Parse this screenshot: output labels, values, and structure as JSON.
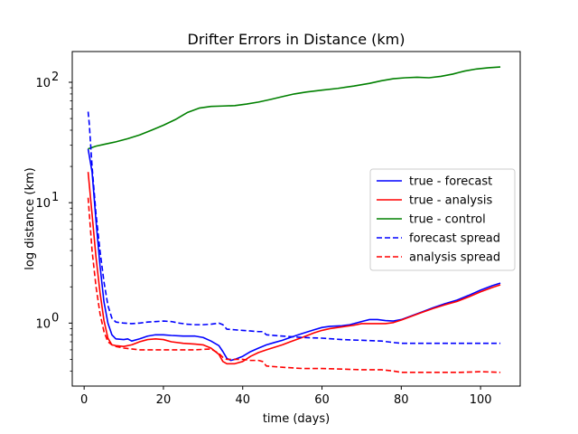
{
  "chart_data": {
    "type": "line",
    "title": "Drifter Errors in Distance (km)",
    "xlabel": "time (days)",
    "ylabel": "log distance (km)",
    "xlim": [
      -3,
      110
    ],
    "ylim": [
      0.3,
      180
    ],
    "yscale": "log",
    "x_ticks": [
      0,
      20,
      40,
      60,
      80,
      100
    ],
    "y_ticks": [
      {
        "value": 1,
        "label": "10",
        "exp": "0"
      },
      {
        "value": 10,
        "label": "10",
        "exp": "1"
      },
      {
        "value": 100,
        "label": "10",
        "exp": "2"
      }
    ],
    "minor_y_ticks": [
      0.4,
      0.5,
      0.6,
      0.7,
      0.8,
      0.9,
      2,
      3,
      4,
      5,
      6,
      7,
      8,
      9,
      20,
      30,
      40,
      50,
      60,
      70,
      80,
      90
    ],
    "grid": false,
    "legend_position": "center-right",
    "series": [
      {
        "name": "true - forecast",
        "color": "#0000ff",
        "dash": "solid",
        "points": [
          [
            1,
            28
          ],
          [
            2,
            18
          ],
          [
            3,
            7
          ],
          [
            4,
            3
          ],
          [
            5,
            1.5
          ],
          [
            6,
            1.0
          ],
          [
            7,
            0.8
          ],
          [
            8,
            0.74
          ],
          [
            10,
            0.73
          ],
          [
            11,
            0.74
          ],
          [
            12,
            0.71
          ],
          [
            14,
            0.74
          ],
          [
            16,
            0.78
          ],
          [
            18,
            0.8
          ],
          [
            20,
            0.8
          ],
          [
            22,
            0.79
          ],
          [
            25,
            0.78
          ],
          [
            28,
            0.78
          ],
          [
            30,
            0.76
          ],
          [
            32,
            0.71
          ],
          [
            34,
            0.65
          ],
          [
            35,
            0.58
          ],
          [
            36,
            0.51
          ],
          [
            37,
            0.49
          ],
          [
            38,
            0.5
          ],
          [
            40,
            0.53
          ],
          [
            42,
            0.58
          ],
          [
            44,
            0.62
          ],
          [
            46,
            0.66
          ],
          [
            48,
            0.69
          ],
          [
            50,
            0.72
          ],
          [
            52,
            0.76
          ],
          [
            55,
            0.82
          ],
          [
            58,
            0.88
          ],
          [
            60,
            0.92
          ],
          [
            62,
            0.94
          ],
          [
            65,
            0.95
          ],
          [
            67,
            0.97
          ],
          [
            70,
            1.03
          ],
          [
            72,
            1.07
          ],
          [
            74,
            1.07
          ],
          [
            76,
            1.05
          ],
          [
            78,
            1.04
          ],
          [
            80,
            1.07
          ],
          [
            82,
            1.13
          ],
          [
            85,
            1.23
          ],
          [
            88,
            1.34
          ],
          [
            91,
            1.45
          ],
          [
            94,
            1.55
          ],
          [
            97,
            1.7
          ],
          [
            100,
            1.88
          ],
          [
            103,
            2.05
          ],
          [
            105,
            2.15
          ]
        ]
      },
      {
        "name": "true - analysis",
        "color": "#ff0000",
        "dash": "solid",
        "points": [
          [
            1,
            18
          ],
          [
            2,
            8
          ],
          [
            3,
            3.5
          ],
          [
            4,
            1.8
          ],
          [
            5,
            1.05
          ],
          [
            6,
            0.75
          ],
          [
            7,
            0.66
          ],
          [
            8,
            0.65
          ],
          [
            10,
            0.64
          ],
          [
            12,
            0.66
          ],
          [
            14,
            0.7
          ],
          [
            16,
            0.73
          ],
          [
            18,
            0.74
          ],
          [
            20,
            0.73
          ],
          [
            22,
            0.7
          ],
          [
            25,
            0.68
          ],
          [
            28,
            0.67
          ],
          [
            30,
            0.66
          ],
          [
            32,
            0.62
          ],
          [
            34,
            0.55
          ],
          [
            35,
            0.48
          ],
          [
            36,
            0.46
          ],
          [
            38,
            0.46
          ],
          [
            40,
            0.48
          ],
          [
            42,
            0.53
          ],
          [
            44,
            0.57
          ],
          [
            46,
            0.6
          ],
          [
            48,
            0.63
          ],
          [
            50,
            0.66
          ],
          [
            52,
            0.7
          ],
          [
            55,
            0.76
          ],
          [
            58,
            0.83
          ],
          [
            60,
            0.87
          ],
          [
            62,
            0.9
          ],
          [
            65,
            0.93
          ],
          [
            68,
            0.96
          ],
          [
            70,
            0.99
          ],
          [
            73,
            0.99
          ],
          [
            76,
            0.99
          ],
          [
            78,
            1.01
          ],
          [
            80,
            1.06
          ],
          [
            82,
            1.12
          ],
          [
            85,
            1.22
          ],
          [
            88,
            1.32
          ],
          [
            91,
            1.42
          ],
          [
            94,
            1.51
          ],
          [
            97,
            1.65
          ],
          [
            100,
            1.82
          ],
          [
            103,
            1.98
          ],
          [
            105,
            2.08
          ]
        ]
      },
      {
        "name": "true - control",
        "color": "#008000",
        "dash": "solid",
        "points": [
          [
            1,
            28
          ],
          [
            3,
            29.5
          ],
          [
            5,
            30.5
          ],
          [
            8,
            32
          ],
          [
            11,
            34
          ],
          [
            14,
            36.5
          ],
          [
            17,
            40
          ],
          [
            20,
            44
          ],
          [
            23,
            49
          ],
          [
            26,
            56
          ],
          [
            29,
            61
          ],
          [
            32,
            63
          ],
          [
            35,
            63.5
          ],
          [
            38,
            64
          ],
          [
            41,
            66
          ],
          [
            44,
            68.5
          ],
          [
            47,
            72
          ],
          [
            50,
            76
          ],
          [
            53,
            80
          ],
          [
            56,
            83
          ],
          [
            60,
            86
          ],
          [
            64,
            89
          ],
          [
            68,
            93
          ],
          [
            72,
            98
          ],
          [
            75,
            103
          ],
          [
            78,
            107
          ],
          [
            81,
            109
          ],
          [
            84,
            110
          ],
          [
            87,
            109
          ],
          [
            90,
            112
          ],
          [
            93,
            117
          ],
          [
            96,
            124
          ],
          [
            99,
            129
          ],
          [
            102,
            132
          ],
          [
            105,
            134
          ]
        ]
      },
      {
        "name": "forecast spread",
        "color": "#0000ff",
        "dash": "dashed",
        "points": [
          [
            1,
            57
          ],
          [
            1.3,
            45
          ],
          [
            2,
            20
          ],
          [
            3,
            8
          ],
          [
            4,
            4
          ],
          [
            5,
            2.2
          ],
          [
            6,
            1.4
          ],
          [
            7,
            1.1
          ],
          [
            8,
            1.02
          ],
          [
            10,
            1.0
          ],
          [
            12,
            0.99
          ],
          [
            14,
            1.0
          ],
          [
            16,
            1.02
          ],
          [
            18,
            1.03
          ],
          [
            20,
            1.04
          ],
          [
            22,
            1.03
          ],
          [
            24,
            1.0
          ],
          [
            26,
            0.98
          ],
          [
            28,
            0.97
          ],
          [
            30,
            0.97
          ],
          [
            32,
            0.98
          ],
          [
            34,
            1.0
          ],
          [
            35,
            0.97
          ],
          [
            36,
            0.89
          ],
          [
            38,
            0.88
          ],
          [
            40,
            0.87
          ],
          [
            42,
            0.86
          ],
          [
            44,
            0.85
          ],
          [
            45,
            0.85
          ],
          [
            46,
            0.8
          ],
          [
            50,
            0.78
          ],
          [
            55,
            0.76
          ],
          [
            60,
            0.75
          ],
          [
            65,
            0.73
          ],
          [
            70,
            0.72
          ],
          [
            75,
            0.71
          ],
          [
            78,
            0.69
          ],
          [
            80,
            0.68
          ],
          [
            85,
            0.68
          ],
          [
            90,
            0.68
          ],
          [
            95,
            0.68
          ],
          [
            100,
            0.68
          ],
          [
            105,
            0.68
          ]
        ]
      },
      {
        "name": "analysis spread",
        "color": "#ff0000",
        "dash": "dashed",
        "points": [
          [
            1,
            11
          ],
          [
            2,
            4
          ],
          [
            3,
            2
          ],
          [
            4,
            1.2
          ],
          [
            5,
            0.85
          ],
          [
            6,
            0.7
          ],
          [
            7,
            0.66
          ],
          [
            8,
            0.64
          ],
          [
            10,
            0.62
          ],
          [
            12,
            0.61
          ],
          [
            14,
            0.6
          ],
          [
            16,
            0.6
          ],
          [
            18,
            0.6
          ],
          [
            20,
            0.6
          ],
          [
            24,
            0.6
          ],
          [
            28,
            0.6
          ],
          [
            32,
            0.61
          ],
          [
            34,
            0.56
          ],
          [
            35,
            0.52
          ],
          [
            36,
            0.5
          ],
          [
            38,
            0.5
          ],
          [
            40,
            0.5
          ],
          [
            42,
            0.49
          ],
          [
            44,
            0.49
          ],
          [
            45,
            0.48
          ],
          [
            46,
            0.44
          ],
          [
            50,
            0.43
          ],
          [
            55,
            0.42
          ],
          [
            60,
            0.42
          ],
          [
            65,
            0.415
          ],
          [
            70,
            0.41
          ],
          [
            75,
            0.41
          ],
          [
            78,
            0.4
          ],
          [
            80,
            0.39
          ],
          [
            85,
            0.39
          ],
          [
            90,
            0.39
          ],
          [
            95,
            0.39
          ],
          [
            100,
            0.395
          ],
          [
            105,
            0.39
          ]
        ]
      }
    ]
  }
}
